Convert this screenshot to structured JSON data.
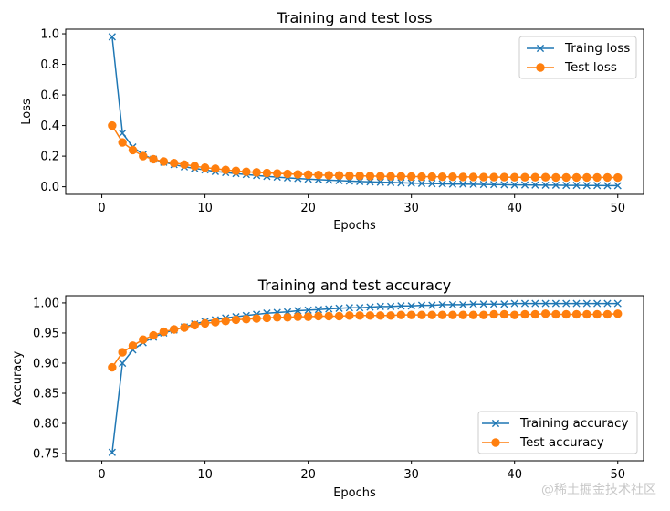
{
  "chart_data": [
    {
      "type": "line",
      "title": "Training and test loss",
      "xlabel": "Epochs",
      "ylabel": "Loss",
      "xlim": [
        -3.5,
        52.5
      ],
      "ylim": [
        -0.05,
        1.03
      ],
      "xticks": [
        "0",
        "10",
        "20",
        "30",
        "40",
        "50"
      ],
      "yticks": [
        "0.0",
        "0.2",
        "0.4",
        "0.6",
        "0.8",
        "1.0"
      ],
      "xtick_values": [
        0,
        10,
        20,
        30,
        40,
        50
      ],
      "ytick_values": [
        0.0,
        0.2,
        0.4,
        0.6,
        0.8,
        1.0
      ],
      "grid": false,
      "legend": "top-right",
      "x": [
        1,
        2,
        3,
        4,
        5,
        6,
        7,
        8,
        9,
        10,
        11,
        12,
        13,
        14,
        15,
        16,
        17,
        18,
        19,
        20,
        21,
        22,
        23,
        24,
        25,
        26,
        27,
        28,
        29,
        30,
        31,
        32,
        33,
        34,
        35,
        36,
        37,
        38,
        39,
        40,
        41,
        42,
        43,
        44,
        45,
        46,
        47,
        48,
        49,
        50
      ],
      "series": [
        {
          "name": "Traing loss",
          "color": "#1f77b4",
          "marker": "x",
          "values": [
            0.98,
            0.35,
            0.26,
            0.21,
            0.18,
            0.16,
            0.145,
            0.13,
            0.12,
            0.11,
            0.1,
            0.093,
            0.086,
            0.08,
            0.074,
            0.068,
            0.063,
            0.058,
            0.054,
            0.05,
            0.046,
            0.043,
            0.04,
            0.037,
            0.034,
            0.032,
            0.03,
            0.028,
            0.026,
            0.024,
            0.022,
            0.021,
            0.019,
            0.018,
            0.017,
            0.016,
            0.015,
            0.014,
            0.013,
            0.012,
            0.012,
            0.011,
            0.01,
            0.01,
            0.009,
            0.009,
            0.008,
            0.008,
            0.007,
            0.007
          ]
        },
        {
          "name": "Test loss",
          "color": "#ff7f0e",
          "marker": "o",
          "values": [
            0.4,
            0.29,
            0.24,
            0.2,
            0.18,
            0.165,
            0.155,
            0.145,
            0.135,
            0.125,
            0.118,
            0.11,
            0.104,
            0.098,
            0.094,
            0.09,
            0.087,
            0.084,
            0.081,
            0.079,
            0.077,
            0.075,
            0.074,
            0.072,
            0.071,
            0.07,
            0.069,
            0.068,
            0.068,
            0.067,
            0.066,
            0.066,
            0.065,
            0.065,
            0.064,
            0.064,
            0.063,
            0.063,
            0.063,
            0.062,
            0.062,
            0.062,
            0.062,
            0.061,
            0.061,
            0.061,
            0.061,
            0.061,
            0.061,
            0.06
          ]
        }
      ]
    },
    {
      "type": "line",
      "title": "Training and test accuracy",
      "xlabel": "Epochs",
      "ylabel": "Accuracy",
      "xlim": [
        -3.5,
        52.5
      ],
      "ylim": [
        0.738,
        1.012
      ],
      "xticks": [
        "0",
        "10",
        "20",
        "30",
        "40",
        "50"
      ],
      "yticks": [
        "0.75",
        "0.80",
        "0.85",
        "0.90",
        "0.95",
        "1.00"
      ],
      "xtick_values": [
        0,
        10,
        20,
        30,
        40,
        50
      ],
      "ytick_values": [
        0.75,
        0.8,
        0.85,
        0.9,
        0.95,
        1.0
      ],
      "grid": false,
      "legend": "bottom-right",
      "x": [
        1,
        2,
        3,
        4,
        5,
        6,
        7,
        8,
        9,
        10,
        11,
        12,
        13,
        14,
        15,
        16,
        17,
        18,
        19,
        20,
        21,
        22,
        23,
        24,
        25,
        26,
        27,
        28,
        29,
        30,
        31,
        32,
        33,
        34,
        35,
        36,
        37,
        38,
        39,
        40,
        41,
        42,
        43,
        44,
        45,
        46,
        47,
        48,
        49,
        50
      ],
      "series": [
        {
          "name": "Training accuracy",
          "color": "#1f77b4",
          "marker": "x",
          "values": [
            0.752,
            0.9,
            0.922,
            0.934,
            0.943,
            0.95,
            0.955,
            0.96,
            0.965,
            0.969,
            0.972,
            0.975,
            0.977,
            0.979,
            0.981,
            0.983,
            0.984,
            0.985,
            0.987,
            0.988,
            0.989,
            0.99,
            0.991,
            0.992,
            0.992,
            0.993,
            0.994,
            0.994,
            0.995,
            0.995,
            0.996,
            0.996,
            0.997,
            0.997,
            0.997,
            0.998,
            0.998,
            0.998,
            0.998,
            0.999,
            0.999,
            0.999,
            0.999,
            0.999,
            0.999,
            0.999,
            0.999,
            0.999,
            0.999,
            0.999
          ]
        },
        {
          "name": "Test accuracy",
          "color": "#ff7f0e",
          "marker": "o",
          "values": [
            0.893,
            0.918,
            0.929,
            0.939,
            0.946,
            0.952,
            0.956,
            0.959,
            0.963,
            0.966,
            0.968,
            0.97,
            0.972,
            0.973,
            0.974,
            0.975,
            0.976,
            0.976,
            0.977,
            0.977,
            0.978,
            0.978,
            0.978,
            0.979,
            0.979,
            0.979,
            0.979,
            0.979,
            0.98,
            0.98,
            0.98,
            0.98,
            0.98,
            0.98,
            0.98,
            0.98,
            0.98,
            0.981,
            0.981,
            0.98,
            0.981,
            0.981,
            0.982,
            0.981,
            0.981,
            0.981,
            0.981,
            0.981,
            0.981,
            0.982
          ]
        }
      ]
    }
  ],
  "watermark": "@稀土掘金技术社区"
}
